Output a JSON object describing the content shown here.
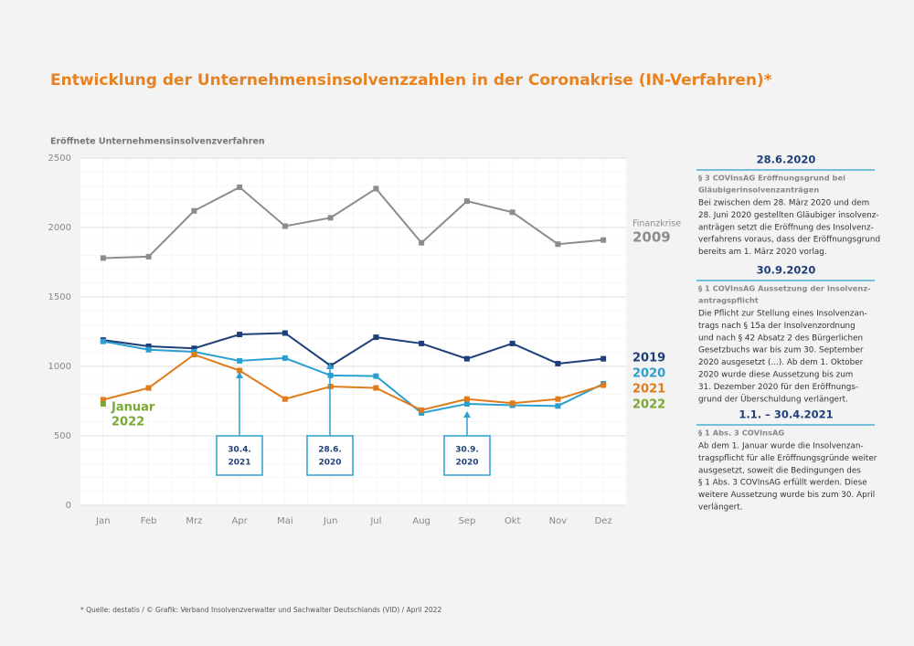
{
  "chart_data": {
    "type": "line",
    "title": "Entwicklung der Unternehmensinsolvenzzahlen in der Coronakrise (IN-Verfahren)*",
    "y_label": "Eröffnete Unternehmensinsolvenzverfahren",
    "categories": [
      "Jan",
      "Feb",
      "Mrz",
      "Apr",
      "Mai",
      "Jun",
      "Jul",
      "Aug",
      "Sep",
      "Okt",
      "Nov",
      "Dez"
    ],
    "series": [
      {
        "name": "2009",
        "color": "#8c8c8c",
        "values": [
          1780,
          1790,
          2120,
          2290,
          2010,
          2070,
          2280,
          1890,
          2190,
          2110,
          1880,
          1910
        ]
      },
      {
        "name": "2019",
        "color": "#1f3f7a",
        "values": [
          1190,
          1145,
          1130,
          1230,
          1240,
          1005,
          1210,
          1165,
          1055,
          1165,
          1020,
          1055
        ]
      },
      {
        "name": "2020",
        "color": "#2aa0d0",
        "values": [
          1180,
          1120,
          1105,
          1040,
          1060,
          935,
          930,
          665,
          730,
          720,
          715,
          875
        ]
      },
      {
        "name": "2021",
        "color": "#e07b1a",
        "values": [
          760,
          845,
          1085,
          970,
          765,
          855,
          845,
          685,
          765,
          735,
          765,
          865
        ]
      },
      {
        "name": "2022",
        "color": "#7aa832",
        "values": [
          730,
          null,
          null,
          null,
          null,
          null,
          null,
          null,
          null,
          null,
          null,
          null
        ]
      }
    ],
    "ylim": [
      0,
      2500
    ],
    "yticks": [
      0,
      500,
      1000,
      1500,
      2000,
      2500
    ],
    "grid": true,
    "annotations": [
      {
        "lines": [
          "Finanzkrise"
        ]
      },
      {
        "lines": [
          "Januar",
          "2022"
        ]
      },
      {
        "lines": [
          "30.4.",
          "2021"
        ]
      },
      {
        "lines": [
          "28.6.",
          "2020"
        ]
      },
      {
        "lines": [
          "30.9.",
          "2020"
        ]
      }
    ]
  },
  "sidebar": [
    {
      "heading": "28.6.2020",
      "subtitle": [
        "§ 3 COVInsAG Eröffnungsgrund bei",
        "Gläubigerinsolvenzanträgen"
      ],
      "body": [
        "Bei zwischen dem 28. März 2020 und dem",
        "28. Juni 2020 gestellten Gläubiger insolvenz-",
        "anträgen setzt die Eröffnung des Insolvenz-",
        "verfahrens voraus, dass der Eröffnungsgrund",
        "bereits am 1. März 2020 vorlag."
      ]
    },
    {
      "heading": "30.9.2020",
      "subtitle": [
        "§ 1 COVInsAG Aussetzung der Insolvenz-",
        "antragspflicht"
      ],
      "body": [
        "Die Pflicht zur Stellung eines Insolvenzan-",
        "trags nach § 15a der Insolvenzordnung",
        "und nach § 42 Absatz 2 des Bürgerlichen",
        "Gesetzbuchs war bis zum 30. September",
        "2020 ausgesetzt (...). Ab dem 1. Oktober",
        "2020 wurde diese Aussetzung bis zum",
        "31. Dezember 2020 für den Eröffnungs-",
        "grund der Überschuldung verlängert."
      ]
    },
    {
      "heading": "1.1. – 30.4.2021",
      "subtitle": [
        "§ 1 Abs. 3 COVInsAG"
      ],
      "body": [
        "Ab dem 1. Januar wurde die Insolvenzan-",
        "tragspflicht für alle Eröffnungsgründe weiter",
        "ausgesetzt, soweit die Bedingungen des",
        "§ 1 Abs. 3 COVInsAG erfüllt werden. Diese",
        "weitere Aussetzung wurde bis zum 30. April",
        "verlängert."
      ]
    }
  ],
  "footnote": "* Quelle: destatis / © Grafik: Verband Insolvenzverwalter und Sachwalter Deutschlands (VID) / April 2022"
}
